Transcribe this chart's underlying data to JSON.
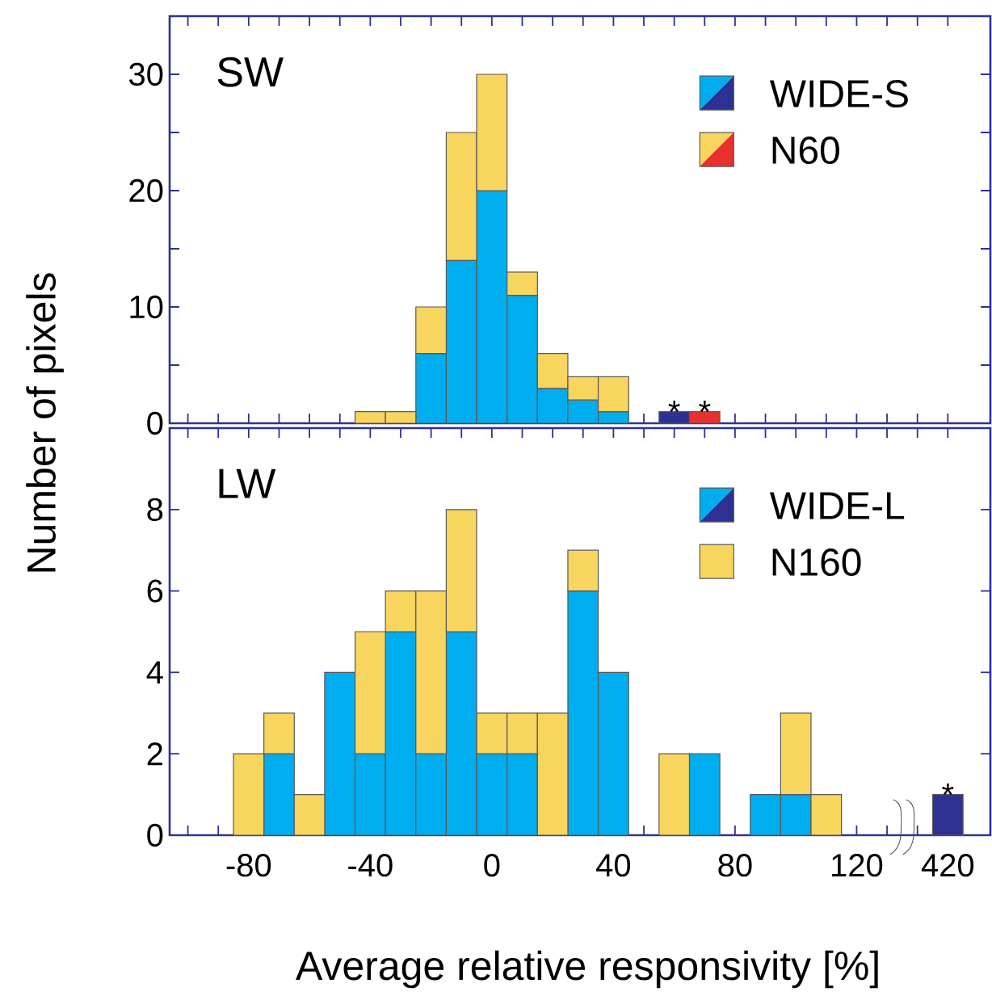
{
  "chart_data": [
    {
      "type": "bar",
      "stacked": true,
      "title": "SW",
      "ylabel": "Number of pixels",
      "tick_labels": "y",
      "legend": "top right",
      "categories": [
        null,
        null,
        "-80",
        null,
        null,
        null,
        "-40",
        null,
        null,
        null,
        "0",
        null,
        null,
        null,
        "40",
        null,
        null,
        null,
        "80",
        null,
        null,
        null,
        "120",
        null,
        null,
        "420"
      ],
      "ylim": [
        0,
        35
      ],
      "yticks": [
        0,
        {
          "value": 5,
          "label": null
        },
        10,
        {
          "value": 15,
          "label": null
        },
        20,
        {
          "value": 25,
          "label": null
        },
        30
      ],
      "series": [
        {
          "name": "WIDE-S",
          "color": "#00aeef",
          "colors": [
            "#00aeef",
            "#00aeef",
            "#00aeef",
            "#00aeef",
            "#00aeef",
            "#00aeef",
            "#00aeef",
            "#00aeef",
            "#00aeef",
            "#00aeef",
            "#00aeef",
            "#00aeef",
            "#00aeef",
            "#00aeef",
            "#00aeef",
            "#00aeef",
            "#2e3192",
            "#00aeef",
            "#00aeef",
            "#00aeef",
            "#00aeef",
            "#00aeef",
            "#00aeef",
            "#00aeef",
            "#00aeef",
            "#00aeef"
          ],
          "values": [
            0,
            0,
            0,
            0,
            0,
            0,
            0,
            0,
            6,
            14,
            20,
            11,
            3,
            2,
            1,
            0,
            1,
            0,
            0,
            0,
            0,
            0,
            0,
            0,
            0,
            0
          ],
          "value_labels": [
            null,
            null,
            null,
            null,
            null,
            null,
            null,
            null,
            null,
            null,
            null,
            null,
            null,
            null,
            null,
            null,
            "*",
            null,
            null,
            null,
            null,
            null,
            null,
            null,
            null,
            null
          ]
        },
        {
          "name": "N60",
          "color": "#f7d55e",
          "colors": [
            "#f7d55e",
            "#f7d55e",
            "#f7d55e",
            "#f7d55e",
            "#f7d55e",
            "#f7d55e",
            "#f7d55e",
            "#f7d55e",
            "#f7d55e",
            "#f7d55e",
            "#f7d55e",
            "#f7d55e",
            "#f7d55e",
            "#f7d55e",
            "#f7d55e",
            "#f7d55e",
            "#f7d55e",
            "#e8302e",
            "#f7d55e",
            "#f7d55e",
            "#f7d55e",
            "#f7d55e",
            "#f7d55e",
            "#f7d55e",
            "#f7d55e",
            "#f7d55e"
          ],
          "values": [
            0,
            0,
            0,
            0,
            0,
            0,
            1,
            1,
            4,
            11,
            10,
            2,
            3,
            2,
            3,
            0,
            0,
            1,
            0,
            0,
            0,
            0,
            0,
            0,
            0,
            0
          ],
          "value_labels": [
            null,
            null,
            null,
            null,
            null,
            null,
            null,
            null,
            null,
            null,
            null,
            null,
            null,
            null,
            null,
            null,
            null,
            "*",
            null,
            null,
            null,
            null,
            null,
            null,
            null,
            null
          ]
        }
      ]
    },
    {
      "type": "bar",
      "stacked": true,
      "title": "LW",
      "xlabel": "Average relative responsivity [%]",
      "legend": "top right",
      "categories": [
        null,
        null,
        "-80",
        null,
        null,
        null,
        "-40",
        null,
        null,
        null,
        "0",
        null,
        null,
        null,
        "40",
        null,
        null,
        null,
        "80",
        null,
        null,
        null,
        "120",
        null,
        null,
        "420"
      ],
      "ylim": [
        0,
        10
      ],
      "yticks": [
        0,
        2,
        4,
        6,
        8
      ],
      "series": [
        {
          "name": "WIDE-L",
          "color": "#00aeef",
          "colors": [
            "#00aeef",
            "#00aeef",
            "#00aeef",
            "#00aeef",
            "#00aeef",
            "#00aeef",
            "#00aeef",
            "#00aeef",
            "#00aeef",
            "#00aeef",
            "#00aeef",
            "#00aeef",
            "#00aeef",
            "#00aeef",
            "#00aeef",
            "#00aeef",
            "#00aeef",
            "#00aeef",
            "#00aeef",
            "#00aeef",
            "#00aeef",
            "#00aeef",
            "#00aeef",
            "#00aeef",
            "#00aeef",
            "#2e3192"
          ],
          "values": [
            0,
            0,
            0,
            2,
            0,
            4,
            2,
            5,
            2,
            5,
            2,
            2,
            0,
            6,
            4,
            0,
            0,
            2,
            0,
            1,
            1,
            0,
            0,
            0,
            0,
            1
          ],
          "value_labels": [
            null,
            null,
            null,
            null,
            null,
            null,
            null,
            null,
            null,
            null,
            null,
            null,
            null,
            null,
            null,
            null,
            null,
            null,
            null,
            null,
            null,
            null,
            null,
            null,
            null,
            "*"
          ]
        },
        {
          "name": "N160",
          "color": "#f7d55e",
          "colors": [
            "#f7d55e",
            "#f7d55e",
            "#f7d55e",
            "#f7d55e",
            "#f7d55e",
            "#f7d55e",
            "#f7d55e",
            "#f7d55e",
            "#f7d55e",
            "#f7d55e",
            "#f7d55e",
            "#f7d55e",
            "#f7d55e",
            "#f7d55e",
            "#f7d55e",
            "#f7d55e",
            "#f7d55e",
            "#f7d55e",
            "#f7d55e",
            "#f7d55e",
            "#f7d55e",
            "#f7d55e",
            "#f7d55e",
            "#f7d55e",
            "#f7d55e",
            "#f7d55e"
          ],
          "values": [
            0,
            0,
            2,
            1,
            1,
            0,
            3,
            1,
            4,
            3,
            1,
            1,
            3,
            1,
            0,
            0,
            2,
            0,
            0,
            0,
            2,
            1,
            0,
            0,
            0,
            0
          ]
        }
      ]
    }
  ]
}
